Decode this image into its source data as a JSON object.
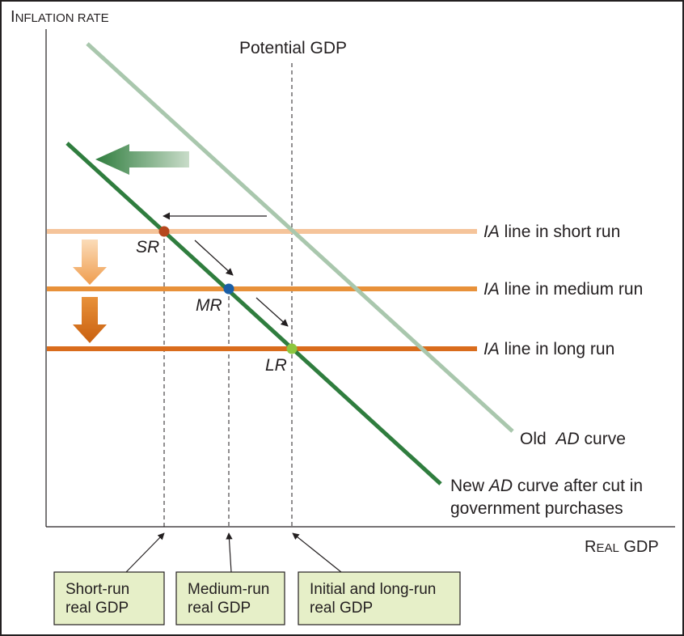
{
  "axes": {
    "y_title": {
      "first": "I",
      "rest": "NFLATION RATE"
    },
    "x_title": {
      "first": "R",
      "rest1": "EAL",
      "rest2": " GDP"
    }
  },
  "potential_gdp_label": "Potential GDP",
  "ia_lines": [
    {
      "prefix": "IA",
      "text": " line in short run",
      "color": "#f5c49a"
    },
    {
      "prefix": "IA",
      "text": " line in medium run",
      "color": "#e8913a"
    },
    {
      "prefix": "IA",
      "text": " line in long run",
      "color": "#d96c1c"
    }
  ],
  "curves": {
    "old_ad": {
      "pre": "Old ",
      "ad": "AD",
      "post": " curve",
      "color": "#a9c7ad"
    },
    "new_ad": {
      "pre": "New ",
      "ad": "AD",
      "post": " curve after cut in",
      "line2": "government purchases",
      "color": "#2f7d3e"
    }
  },
  "points": [
    {
      "label": "SR",
      "color": "#b5471d"
    },
    {
      "label": "MR",
      "color": "#1b5fa6"
    },
    {
      "label": "LR",
      "color": "#8dc63f"
    }
  ],
  "boxes": [
    {
      "line1": "Short-run",
      "line2": "real GDP"
    },
    {
      "line1": "Medium-run",
      "line2": "real GDP"
    },
    {
      "line1": "Initial and long-run",
      "line2": "real GDP"
    }
  ],
  "box_fill": "#e6efc8"
}
